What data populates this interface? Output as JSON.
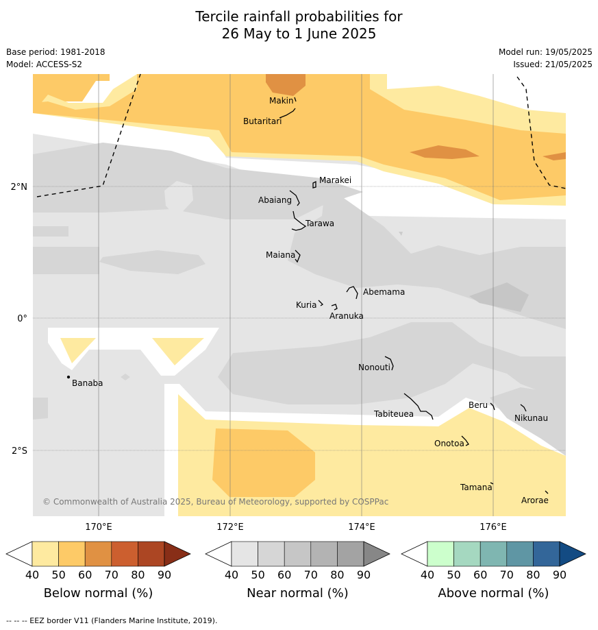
{
  "title": {
    "line1": "Tercile rainfall probabilities for",
    "line2": "26 May to 1 June 2025"
  },
  "meta": {
    "base_period": "Base period: 1981-2018",
    "model": "Model: ACCESS-S2",
    "model_run": "Model run: 19/05/2025",
    "issued": "Issued: 21/05/2025"
  },
  "map": {
    "lat_labels": [
      "2°N",
      "0°",
      "2°S"
    ],
    "lon_labels": [
      "170°E",
      "172°E",
      "174°E",
      "176°E"
    ],
    "places": [
      "Makin",
      "Butaritari",
      "Marakei",
      "Abaiang",
      "Tarawa",
      "Maiana",
      "Abemama",
      "Kuria",
      "Aranuka",
      "Banaba",
      "Nonouti",
      "Beru",
      "Tabiteuea",
      "Nikunau",
      "Onotoa",
      "Tamana",
      "Arorae"
    ],
    "copyright": "© Commonwealth of Australia 2025, Bureau of Meteorology, supported by COSPPac"
  },
  "colors": {
    "below": [
      "#ffffff",
      "#feeaa0",
      "#fdca67",
      "#e09143",
      "#cc5f2f",
      "#ac4623",
      "#882e17"
    ],
    "near": [
      "#ffffff",
      "#e5e5e5",
      "#d6d6d6",
      "#c6c6c6",
      "#b3b3b3",
      "#a3a3a3",
      "#878787"
    ],
    "above": [
      "#ffffff",
      "#ccffcc",
      "#a5d8c0",
      "#7fb6b1",
      "#5f96a4",
      "#336699",
      "#134b83"
    ]
  },
  "legends": [
    {
      "title": "Below normal (%)",
      "ticks": [
        "40",
        "50",
        "60",
        "70",
        "80",
        "90"
      ]
    },
    {
      "title": "Near normal (%)",
      "ticks": [
        "40",
        "50",
        "60",
        "70",
        "80",
        "90"
      ]
    },
    {
      "title": "Above normal (%)",
      "ticks": [
        "40",
        "50",
        "60",
        "70",
        "80",
        "90"
      ]
    }
  ],
  "footnote": "--  --  -- EEZ border V11 (Flanders Marine Institute, 2019)."
}
